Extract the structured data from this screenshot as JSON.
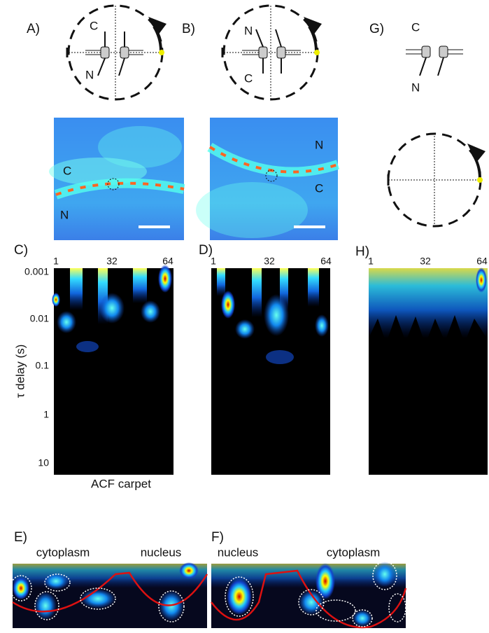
{
  "panels": [
    {
      "label": "A)",
      "top": "C",
      "bottom": "N"
    },
    {
      "label": "B)",
      "top": "N",
      "bottom": "C"
    },
    {
      "label": "G)",
      "top": "C",
      "bottom": "N"
    }
  ],
  "images": [
    {
      "upper": "C",
      "lower": "N"
    },
    {
      "upper": "N",
      "lower": "C"
    }
  ],
  "carpets": [
    {
      "label": "C)",
      "x_ticks": [
        "1",
        "32",
        "64"
      ]
    },
    {
      "label": "D)",
      "x_ticks": [
        "1",
        "32",
        "64"
      ]
    },
    {
      "label": "H)",
      "x_ticks": [
        "1",
        "32",
        "64"
      ]
    }
  ],
  "y_axis": {
    "label": "τ delay (s)",
    "ticks": [
      "0.001",
      "0.01",
      "0.1",
      "1",
      "10"
    ]
  },
  "x_axis_label": "ACF carpet",
  "bottom_panels": [
    {
      "label": "E)",
      "left": "cytoplasm",
      "right": "nucleus"
    },
    {
      "label": "F)",
      "left": "nucleus",
      "right": "cytoplasm"
    }
  ]
}
